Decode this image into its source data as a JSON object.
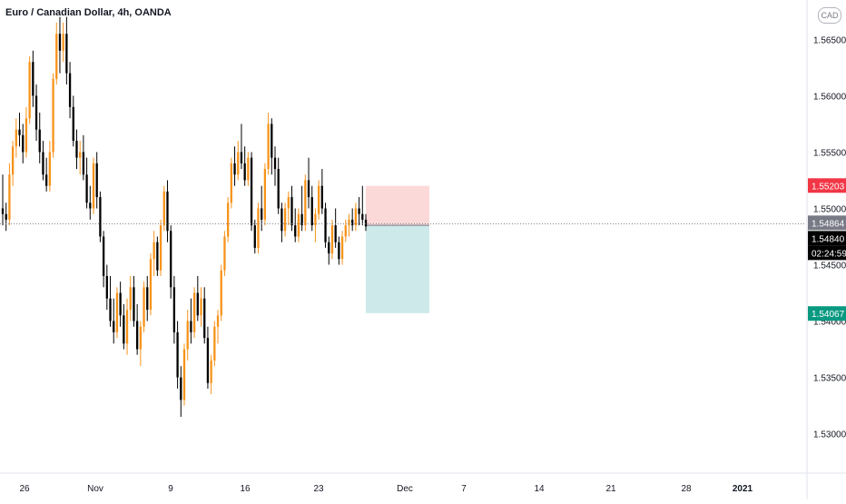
{
  "header": {
    "symbol_title": "Euro / Canadian Dollar, 4h, OANDA",
    "currency_badge": "CAD"
  },
  "chart_data": {
    "type": "candlestick",
    "ylim": [
      1.5265,
      1.5685
    ],
    "y_ticks": [
      "1.53000",
      "1.53500",
      "1.54000",
      "1.54500",
      "1.55000",
      "1.55500",
      "1.56000",
      "1.56500"
    ],
    "x_ticks": [
      "26",
      "Nov",
      "9",
      "16",
      "23",
      "Dec",
      "7",
      "14",
      "21",
      "28",
      "2021"
    ],
    "price_labels": {
      "target": {
        "text": "1.55203",
        "color": "#f23645"
      },
      "current": {
        "text": "1.54864",
        "color": "#787b86"
      },
      "last": {
        "text": "1.54840",
        "color": "#000000"
      },
      "countdown": {
        "text": "02:24:59",
        "color": "#000000"
      },
      "stop": {
        "text": "1.54067",
        "color": "#089981"
      }
    },
    "position": {
      "direction": "short",
      "entry": 1.5485,
      "stop_loss": 1.552,
      "take_profit": 1.5407,
      "loss_color": "#fcd9d9",
      "profit_color": "#cde9e9"
    },
    "candle_colors": {
      "up": "#f7931a",
      "down": "#000000"
    },
    "candles": [
      [
        1.55,
        1.553,
        1.5485,
        1.5495
      ],
      [
        1.5495,
        1.5505,
        1.548,
        1.549
      ],
      [
        1.549,
        1.554,
        1.5485,
        1.553
      ],
      [
        1.553,
        1.556,
        1.552,
        1.5555
      ],
      [
        1.5555,
        1.558,
        1.5545,
        1.557
      ],
      [
        1.557,
        1.5585,
        1.5555,
        1.5565
      ],
      [
        1.5565,
        1.5575,
        1.554,
        1.555
      ],
      [
        1.555,
        1.559,
        1.5545,
        1.558
      ],
      [
        1.558,
        1.5635,
        1.5575,
        1.563
      ],
      [
        1.563,
        1.564,
        1.559,
        1.56
      ],
      [
        1.56,
        1.561,
        1.556,
        1.557
      ],
      [
        1.557,
        1.5585,
        1.554,
        1.555
      ],
      [
        1.555,
        1.556,
        1.5525,
        1.553
      ],
      [
        1.553,
        1.5545,
        1.5515,
        1.552
      ],
      [
        1.552,
        1.556,
        1.5515,
        1.555
      ],
      [
        1.555,
        1.562,
        1.5545,
        1.5615
      ],
      [
        1.5615,
        1.5665,
        1.561,
        1.5655
      ],
      [
        1.5655,
        1.567,
        1.562,
        1.564
      ],
      [
        1.564,
        1.5665,
        1.563,
        1.5655
      ],
      [
        1.5655,
        1.567,
        1.561,
        1.562
      ],
      [
        1.562,
        1.563,
        1.558,
        1.559
      ],
      [
        1.559,
        1.56,
        1.5555,
        1.556
      ],
      [
        1.556,
        1.557,
        1.5535,
        1.5545
      ],
      [
        1.5545,
        1.556,
        1.553,
        1.555
      ],
      [
        1.555,
        1.5565,
        1.5525,
        1.553
      ],
      [
        1.553,
        1.5545,
        1.55,
        1.5505
      ],
      [
        1.5505,
        1.552,
        1.549,
        1.55
      ],
      [
        1.55,
        1.5545,
        1.5495,
        1.554
      ],
      [
        1.554,
        1.555,
        1.55,
        1.551
      ],
      [
        1.551,
        1.5515,
        1.547,
        1.5475
      ],
      [
        1.5475,
        1.548,
        1.543,
        1.544
      ],
      [
        1.544,
        1.545,
        1.541,
        1.542
      ],
      [
        1.542,
        1.544,
        1.5395,
        1.54
      ],
      [
        1.54,
        1.542,
        1.538,
        1.539
      ],
      [
        1.539,
        1.543,
        1.5385,
        1.5425
      ],
      [
        1.5425,
        1.5435,
        1.5395,
        1.5405
      ],
      [
        1.5405,
        1.5415,
        1.5375,
        1.538
      ],
      [
        1.538,
        1.542,
        1.537,
        1.541
      ],
      [
        1.541,
        1.544,
        1.54,
        1.543
      ],
      [
        1.543,
        1.544,
        1.5395,
        1.54
      ],
      [
        1.54,
        1.5415,
        1.537,
        1.5375
      ],
      [
        1.5375,
        1.54,
        1.536,
        1.5395
      ],
      [
        1.5395,
        1.5435,
        1.539,
        1.543
      ],
      [
        1.543,
        1.544,
        1.54,
        1.541
      ],
      [
        1.541,
        1.546,
        1.5405,
        1.5455
      ],
      [
        1.5455,
        1.548,
        1.544,
        1.547
      ],
      [
        1.547,
        1.5475,
        1.544,
        1.5445
      ],
      [
        1.5445,
        1.549,
        1.544,
        1.5485
      ],
      [
        1.5485,
        1.552,
        1.548,
        1.5515
      ],
      [
        1.5515,
        1.5525,
        1.547,
        1.548
      ],
      [
        1.548,
        1.5485,
        1.542,
        1.543
      ],
      [
        1.543,
        1.544,
        1.538,
        1.539
      ],
      [
        1.539,
        1.54,
        1.534,
        1.535
      ],
      [
        1.535,
        1.536,
        1.5315,
        1.533
      ],
      [
        1.533,
        1.538,
        1.5325,
        1.5375
      ],
      [
        1.5375,
        1.541,
        1.5365,
        1.54
      ],
      [
        1.54,
        1.542,
        1.538,
        1.539
      ],
      [
        1.539,
        1.543,
        1.5385,
        1.5425
      ],
      [
        1.5425,
        1.544,
        1.54,
        1.5405
      ],
      [
        1.5405,
        1.543,
        1.5395,
        1.542
      ],
      [
        1.542,
        1.543,
        1.538,
        1.5385
      ],
      [
        1.5385,
        1.5395,
        1.534,
        1.5345
      ],
      [
        1.5345,
        1.537,
        1.5335,
        1.5365
      ],
      [
        1.5365,
        1.54,
        1.536,
        1.5395
      ],
      [
        1.5395,
        1.541,
        1.538,
        1.5405
      ],
      [
        1.5405,
        1.545,
        1.54,
        1.5445
      ],
      [
        1.5445,
        1.548,
        1.544,
        1.5475
      ],
      [
        1.5475,
        1.551,
        1.547,
        1.5505
      ],
      [
        1.5505,
        1.5545,
        1.55,
        1.554
      ],
      [
        1.554,
        1.5555,
        1.552,
        1.553
      ],
      [
        1.553,
        1.556,
        1.5525,
        1.555
      ],
      [
        1.555,
        1.5575,
        1.5535,
        1.554
      ],
      [
        1.554,
        1.5555,
        1.552,
        1.5525
      ],
      [
        1.5525,
        1.555,
        1.552,
        1.5545
      ],
      [
        1.5545,
        1.555,
        1.548,
        1.5485
      ],
      [
        1.5485,
        1.549,
        1.546,
        1.5465
      ],
      [
        1.5465,
        1.5505,
        1.546,
        1.55
      ],
      [
        1.55,
        1.552,
        1.548,
        1.549
      ],
      [
        1.549,
        1.554,
        1.5485,
        1.5535
      ],
      [
        1.5535,
        1.5585,
        1.553,
        1.5575
      ],
      [
        1.5575,
        1.558,
        1.553,
        1.5545
      ],
      [
        1.5545,
        1.5555,
        1.552,
        1.5535
      ],
      [
        1.5535,
        1.5545,
        1.5495,
        1.55
      ],
      [
        1.55,
        1.5505,
        1.547,
        1.548
      ],
      [
        1.548,
        1.5505,
        1.5475,
        1.55
      ],
      [
        1.55,
        1.5515,
        1.5485,
        1.551
      ],
      [
        1.551,
        1.552,
        1.548,
        1.5485
      ],
      [
        1.5485,
        1.55,
        1.547,
        1.5475
      ],
      [
        1.5475,
        1.55,
        1.547,
        1.5495
      ],
      [
        1.5495,
        1.552,
        1.548,
        1.5485
      ],
      [
        1.5485,
        1.553,
        1.548,
        1.5525
      ],
      [
        1.5525,
        1.5545,
        1.55,
        1.551
      ],
      [
        1.551,
        1.552,
        1.548,
        1.5485
      ],
      [
        1.5485,
        1.55,
        1.547,
        1.5495
      ],
      [
        1.5495,
        1.5525,
        1.549,
        1.552
      ],
      [
        1.552,
        1.5535,
        1.5495,
        1.55
      ],
      [
        1.55,
        1.5505,
        1.5465,
        1.547
      ],
      [
        1.547,
        1.5475,
        1.545,
        1.546
      ],
      [
        1.546,
        1.549,
        1.5455,
        1.5485
      ],
      [
        1.5485,
        1.55,
        1.5465,
        1.547
      ],
      [
        1.547,
        1.5475,
        1.545,
        1.5455
      ],
      [
        1.5455,
        1.548,
        1.545,
        1.5475
      ],
      [
        1.5475,
        1.549,
        1.547,
        1.5485
      ],
      [
        1.5485,
        1.5495,
        1.5475,
        1.549
      ],
      [
        1.549,
        1.55,
        1.548,
        1.5485
      ],
      [
        1.5485,
        1.5505,
        1.548,
        1.55
      ],
      [
        1.55,
        1.551,
        1.5485,
        1.5495
      ],
      [
        1.5495,
        1.552,
        1.5485,
        1.549
      ],
      [
        1.549,
        1.5495,
        1.548,
        1.5484
      ]
    ]
  }
}
